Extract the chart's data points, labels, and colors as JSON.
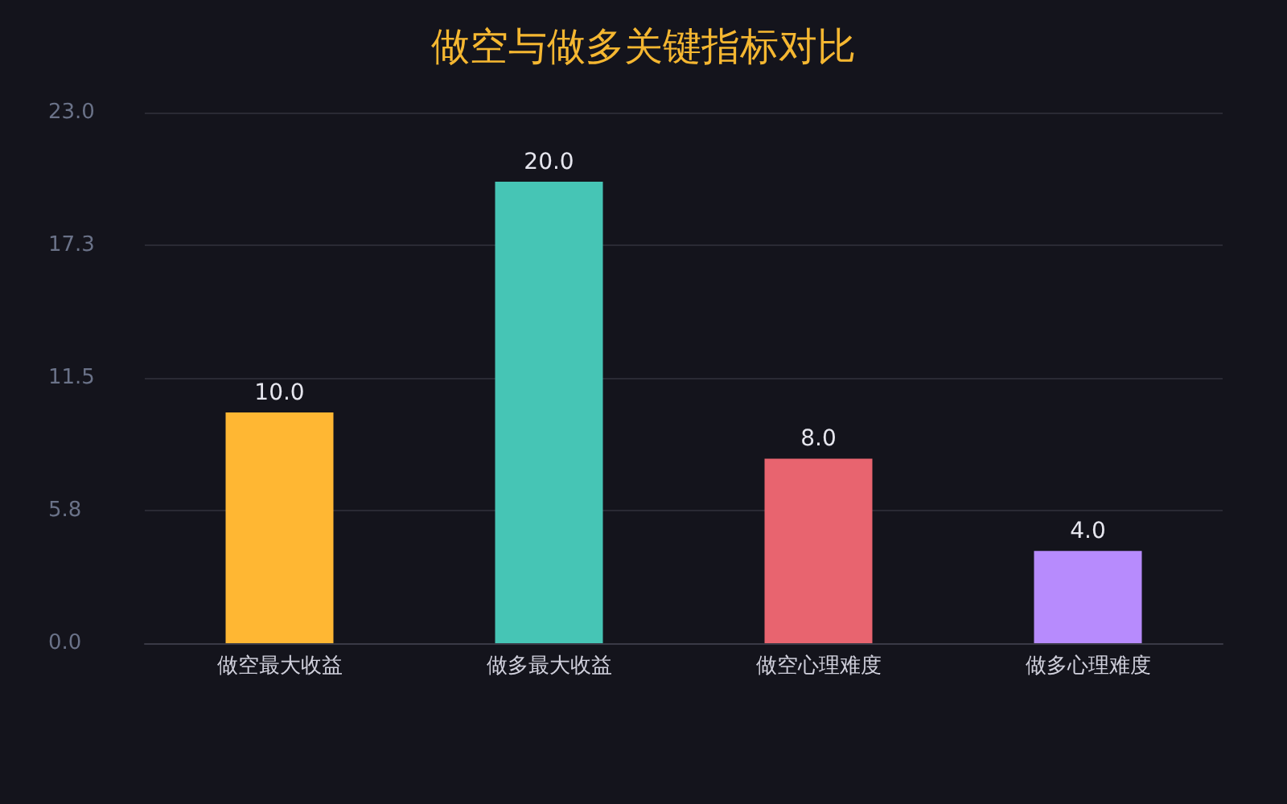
{
  "chart_data": {
    "type": "bar",
    "title": "做空与做多关键指标对比",
    "categories": [
      "做空最大收益",
      "做多最大收益",
      "做空心理难度",
      "做多心理难度"
    ],
    "values": [
      10,
      20,
      8,
      4
    ],
    "colors": [
      "#ffb733",
      "#46c5b5",
      "#e8646f",
      "#b78bfd"
    ],
    "value_labels": [
      "10.0",
      "20.0",
      "8.0",
      "4.0"
    ],
    "ylim": [
      0,
      23
    ],
    "yticks": [
      {
        "value": 0,
        "label": "0.0"
      },
      {
        "value": 5.75,
        "label": "5.8"
      },
      {
        "value": 11.5,
        "label": "11.5"
      },
      {
        "value": 17.25,
        "label": "17.3"
      },
      {
        "value": 23,
        "label": "23.0"
      }
    ],
    "grid": "y"
  }
}
